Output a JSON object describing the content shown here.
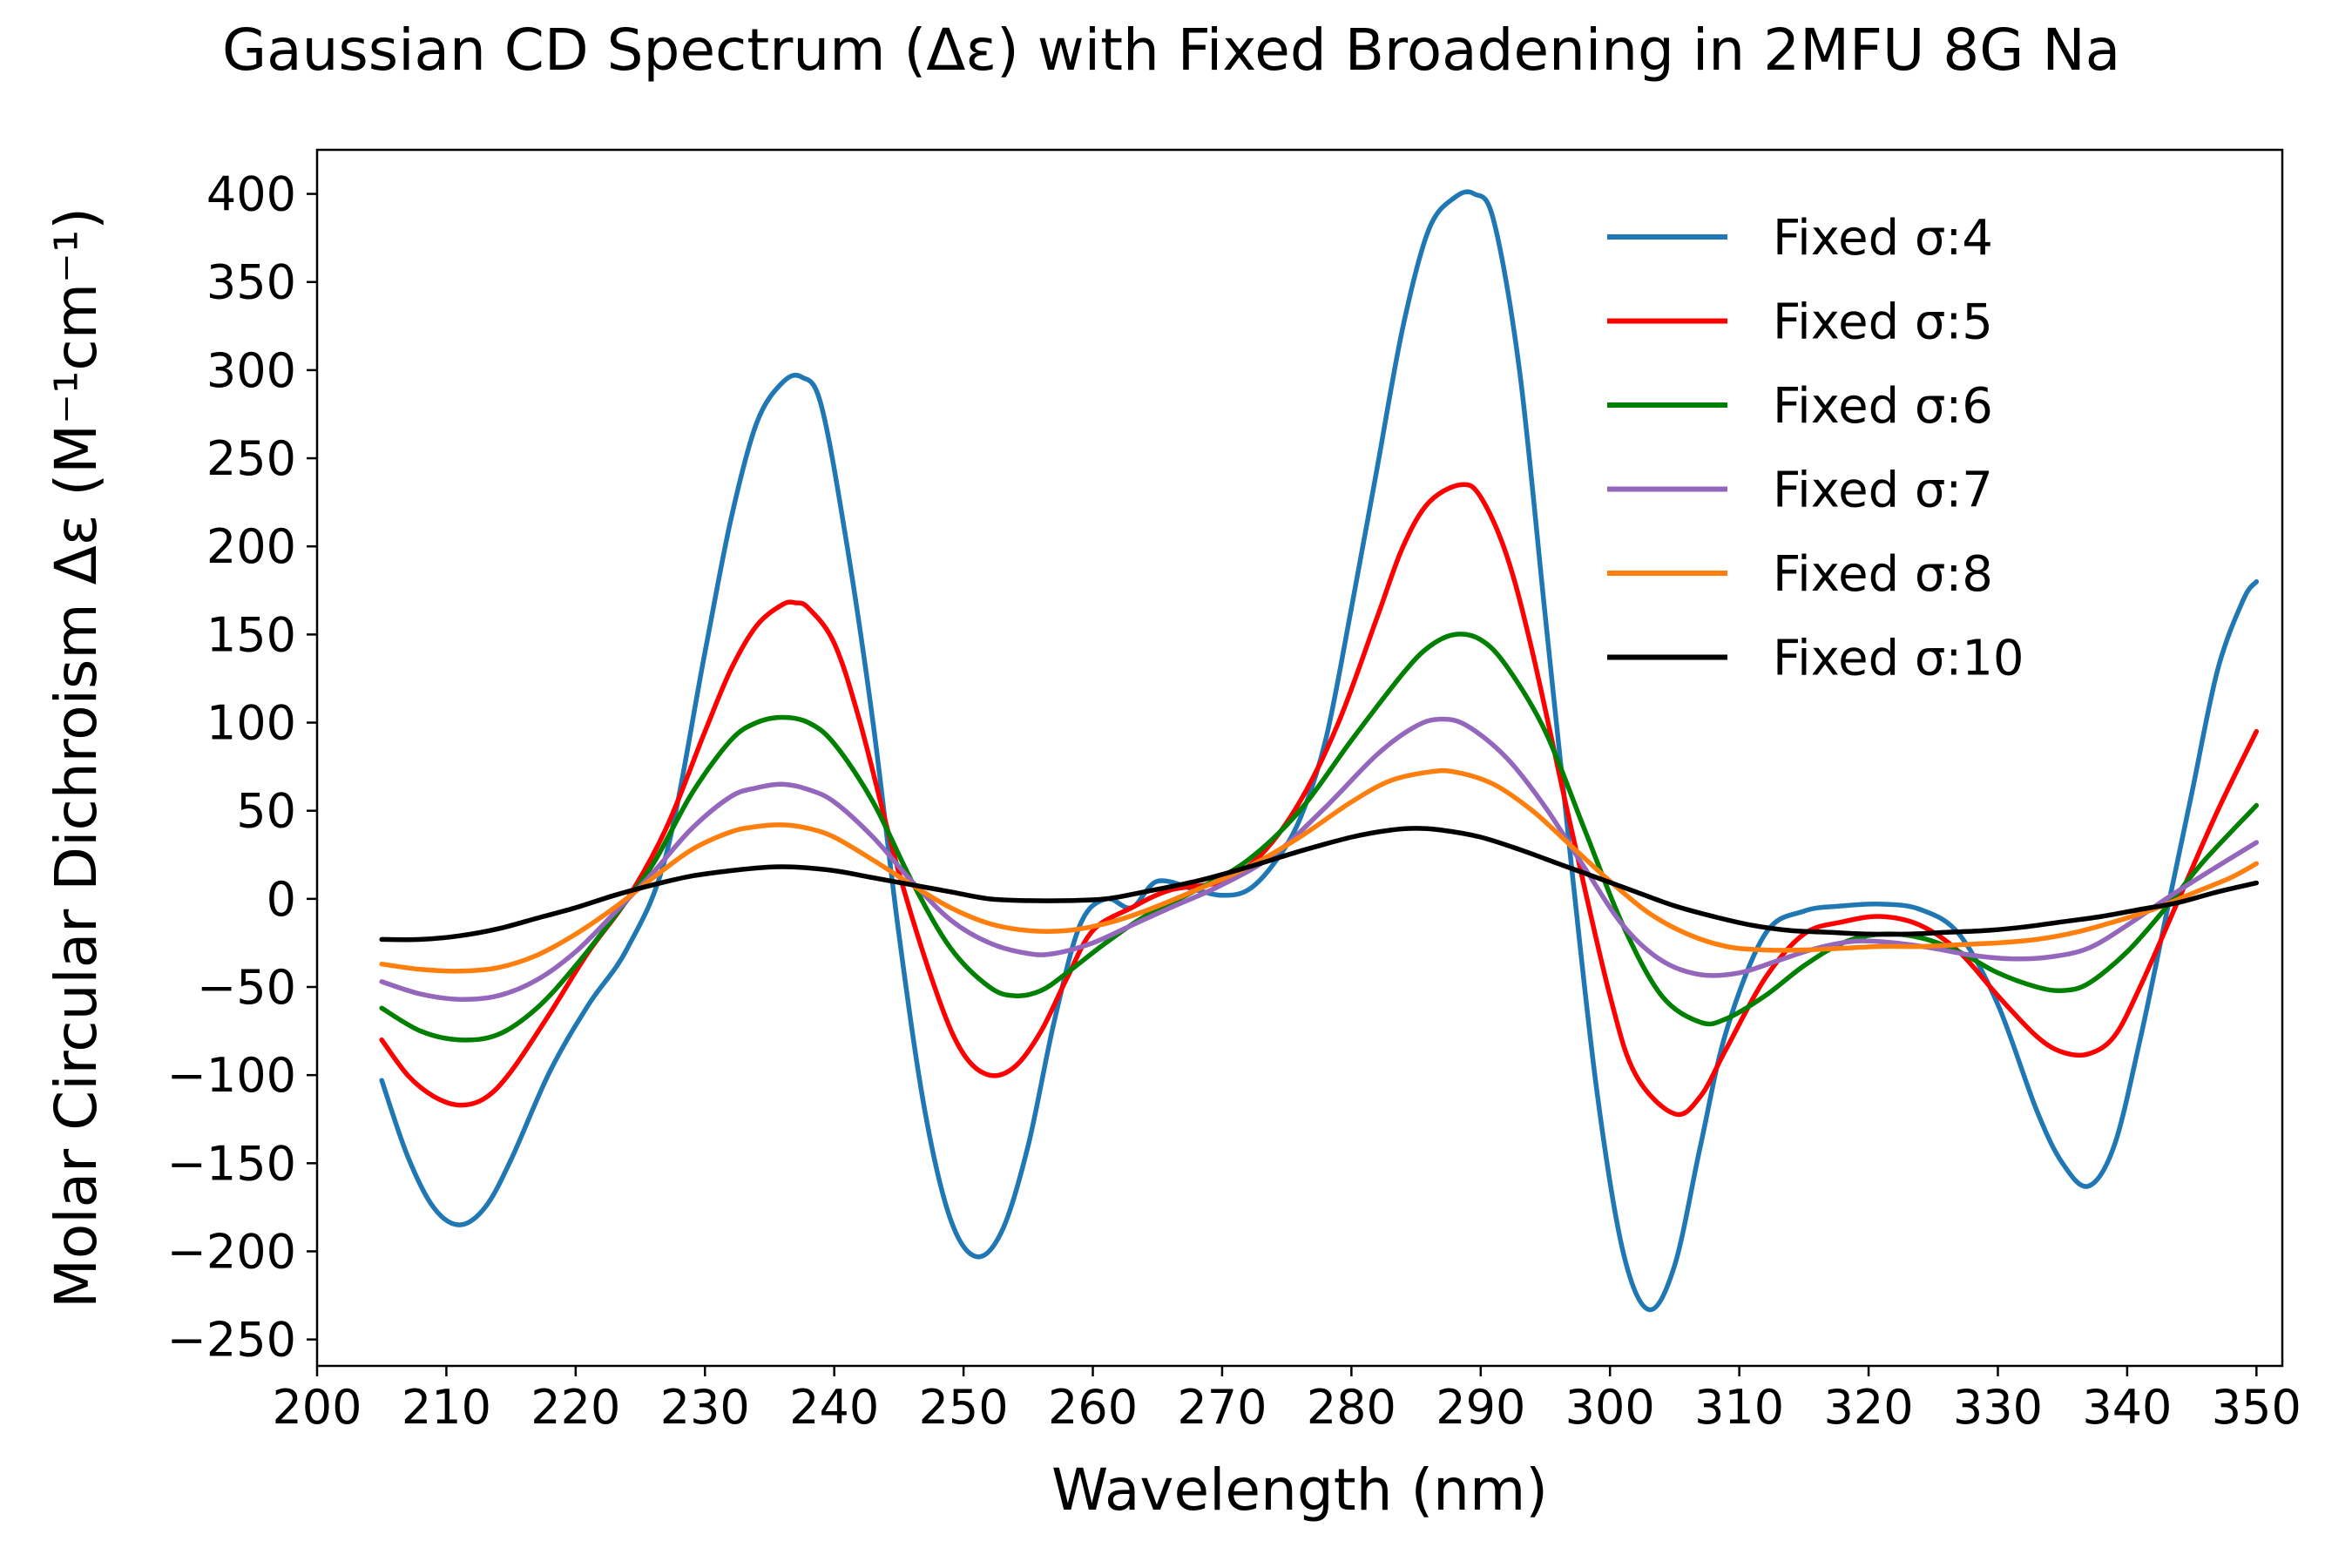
{
  "chart_data": {
    "type": "line",
    "title": "Gaussian CD Spectrum (Δε) with Fixed Broadening in 2MFU 8G Na",
    "xlabel": "Wavelength (nm)",
    "ylabel": "Molar Circular Dichroism Δε (M⁻¹cm⁻¹)",
    "xlim": [
      200,
      352
    ],
    "ylim": [
      -265,
      425
    ],
    "xticks": [
      200,
      210,
      220,
      230,
      240,
      250,
      260,
      270,
      280,
      290,
      300,
      310,
      320,
      330,
      340,
      350
    ],
    "yticks": [
      -250,
      -200,
      -150,
      -100,
      -50,
      0,
      50,
      100,
      150,
      200,
      250,
      300,
      350,
      400
    ],
    "grid": false,
    "legend_position": "top-right",
    "series": [
      {
        "name": "Fixed σ:4",
        "color": "#1f77b4",
        "x": [
          205,
          207,
          209,
          211,
          213,
          215,
          218,
          221,
          224,
          227,
          230,
          232,
          234,
          236,
          237.5,
          239,
          241,
          243,
          245,
          247,
          249,
          251,
          253,
          255,
          257,
          259,
          261,
          263,
          265,
          268,
          270,
          272,
          274,
          276,
          278,
          280,
          282,
          284,
          286,
          288,
          289.5,
          291,
          293,
          295,
          297,
          299,
          301,
          303,
          305,
          307,
          309,
          312,
          315,
          318,
          321,
          324,
          327,
          330,
          333,
          335,
          337,
          339,
          341,
          343,
          345,
          347,
          349,
          350
        ],
        "y": [
          -103,
          -146,
          -175,
          -185,
          -175,
          -148,
          -98,
          -60,
          -28,
          25,
          140,
          215,
          270,
          293,
          296,
          280,
          200,
          100,
          -20,
          -120,
          -182,
          -203,
          -188,
          -140,
          -70,
          -15,
          0,
          -5,
          10,
          5,
          2,
          5,
          20,
          45,
          90,
          165,
          245,
          325,
          380,
          398,
          400,
          385,
          300,
          160,
          20,
          -110,
          -200,
          -233,
          -208,
          -140,
          -75,
          -20,
          -7,
          -4,
          -3,
          -6,
          -20,
          -60,
          -120,
          -150,
          -163,
          -140,
          -80,
          -10,
          60,
          130,
          170,
          180
        ]
      },
      {
        "name": "Fixed σ:5",
        "color": "#ff0000",
        "x": [
          205,
          207,
          209,
          211,
          213,
          215,
          218,
          221,
          224,
          227,
          230,
          232,
          234,
          236,
          237,
          238,
          240,
          242,
          245,
          248,
          250,
          252,
          254,
          256,
          258,
          260,
          263,
          266,
          270,
          273,
          276,
          279,
          282,
          284,
          286,
          288.5,
          290,
          292,
          294,
          297,
          300,
          302,
          305,
          307,
          309,
          312,
          315,
          318,
          321,
          324,
          327,
          330,
          333,
          335,
          337,
          339,
          341,
          344,
          347,
          350
        ],
        "y": [
          -80,
          -100,
          -112,
          -117,
          -113,
          -98,
          -65,
          -30,
          0,
          40,
          95,
          130,
          155,
          167,
          168,
          165,
          145,
          100,
          15,
          -55,
          -88,
          -100,
          -95,
          -75,
          -45,
          -18,
          -5,
          5,
          10,
          25,
          55,
          100,
          160,
          200,
          225,
          235,
          228,
          195,
          140,
          40,
          -55,
          -100,
          -122,
          -112,
          -85,
          -45,
          -20,
          -13,
          -10,
          -15,
          -30,
          -55,
          -78,
          -87,
          -88,
          -78,
          -50,
          0,
          50,
          95
        ]
      },
      {
        "name": "Fixed σ:6",
        "color": "#008000",
        "x": [
          205,
          208,
          211,
          214,
          217,
          220,
          223,
          226,
          229,
          232,
          234,
          236,
          238,
          240,
          243,
          246,
          249,
          252,
          254,
          256,
          258,
          261,
          264,
          268,
          272,
          276,
          280,
          284,
          286,
          288,
          290,
          292,
          295,
          298,
          301,
          304,
          307,
          309,
          312,
          315,
          318,
          321,
          324,
          327,
          330,
          333,
          335,
          337,
          340,
          343,
          346,
          350
        ],
        "y": [
          -62,
          -75,
          -80,
          -77,
          -62,
          -38,
          -10,
          20,
          60,
          90,
          100,
          103,
          100,
          88,
          55,
          10,
          -28,
          -50,
          -55,
          -52,
          -42,
          -25,
          -10,
          5,
          22,
          50,
          90,
          128,
          143,
          150,
          147,
          132,
          95,
          40,
          -15,
          -55,
          -70,
          -68,
          -55,
          -38,
          -25,
          -20,
          -22,
          -30,
          -42,
          -50,
          -52,
          -48,
          -30,
          -5,
          22,
          53
        ]
      },
      {
        "name": "Fixed σ:7",
        "color": "#9467bd",
        "x": [
          205,
          208,
          211,
          214,
          217,
          220,
          223,
          226,
          229,
          232,
          234,
          236,
          238,
          240,
          243,
          246,
          249,
          252,
          255,
          257,
          260,
          263,
          266,
          270,
          274,
          278,
          282,
          285,
          287,
          289,
          292,
          295,
          298,
          301,
          304,
          307,
          310,
          313,
          316,
          319,
          322,
          325,
          328,
          331,
          334,
          337,
          340,
          343,
          346,
          350
        ],
        "y": [
          -47,
          -54,
          -57,
          -55,
          -46,
          -30,
          -8,
          15,
          40,
          58,
          63,
          65,
          62,
          55,
          35,
          10,
          -12,
          -25,
          -31,
          -31,
          -25,
          -15,
          -5,
          8,
          25,
          52,
          82,
          98,
          102,
          98,
          80,
          52,
          18,
          -15,
          -35,
          -43,
          -42,
          -35,
          -28,
          -24,
          -25,
          -28,
          -32,
          -34,
          -33,
          -28,
          -15,
          0,
          14,
          32
        ]
      },
      {
        "name": "Fixed σ:8",
        "color": "#ff7f0e",
        "x": [
          205,
          208,
          211,
          214,
          217,
          220,
          223,
          226,
          229,
          232,
          234,
          236,
          238,
          240,
          243,
          246,
          249,
          252,
          255,
          258,
          261,
          264,
          268,
          272,
          276,
          280,
          283,
          286,
          288,
          291,
          294,
          297,
          300,
          303,
          306,
          309,
          312,
          315,
          318,
          321,
          324,
          327,
          330,
          333,
          336,
          339,
          342,
          345,
          348,
          350
        ],
        "y": [
          -37,
          -40,
          -41,
          -39,
          -32,
          -20,
          -5,
          12,
          28,
          38,
          41,
          42,
          40,
          35,
          22,
          8,
          -5,
          -14,
          -18,
          -18,
          -14,
          -7,
          5,
          18,
          35,
          55,
          67,
          72,
          72,
          65,
          50,
          30,
          10,
          -8,
          -20,
          -27,
          -29,
          -29,
          -28,
          -27,
          -27,
          -26,
          -25,
          -23,
          -19,
          -13,
          -6,
          3,
          12,
          20
        ]
      },
      {
        "name": "Fixed σ:10",
        "color": "#000000",
        "x": [
          205,
          208,
          211,
          214,
          217,
          220,
          223,
          226,
          229,
          232,
          235,
          237,
          240,
          243,
          246,
          249,
          252,
          255,
          258,
          261,
          264,
          268,
          272,
          276,
          280,
          283,
          285,
          287,
          290,
          293,
          296,
          299,
          302,
          305,
          308,
          311,
          314,
          317,
          320,
          323,
          326,
          329,
          332,
          335,
          338,
          341,
          344,
          347,
          350
        ],
        "y": [
          -23,
          -23,
          -21,
          -17,
          -11,
          -5,
          2,
          8,
          13,
          16,
          18,
          18,
          16,
          12,
          8,
          4,
          0,
          -1,
          -1,
          0,
          4,
          10,
          18,
          27,
          35,
          39,
          40,
          39,
          35,
          28,
          20,
          12,
          4,
          -4,
          -10,
          -15,
          -18,
          -19,
          -20,
          -20,
          -19,
          -18,
          -16,
          -13,
          -10,
          -6,
          -2,
          4,
          9
        ]
      }
    ]
  }
}
